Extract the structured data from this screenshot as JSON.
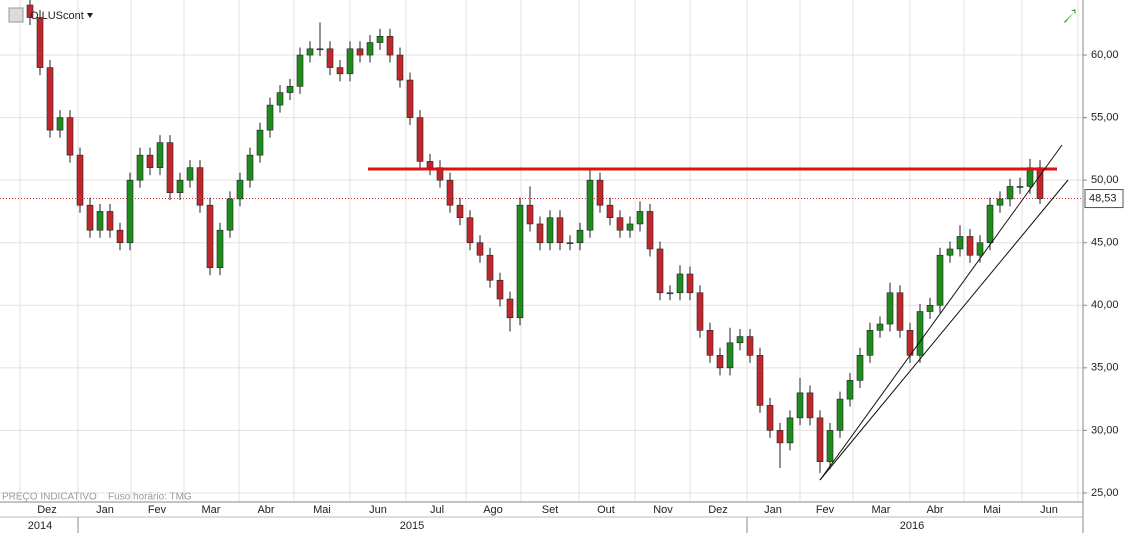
{
  "chart_data": {
    "type": "candlestick",
    "symbol": "OILUScont",
    "notes": [
      "PREÇO INDICATIVO",
      "Fuso horário: TMG"
    ],
    "months": [
      "Dez",
      "Jan",
      "Fev",
      "Mar",
      "Abr",
      "Mai",
      "Jun",
      "Jul",
      "Ago",
      "Set",
      "Out",
      "Nov",
      "Dez",
      "Jan",
      "Fev",
      "Mar",
      "Abr",
      "Mai",
      "Jun"
    ],
    "years": [
      "2014",
      "2015",
      "2016"
    ],
    "ylim": [
      24.3,
      64.4
    ],
    "yticks": [
      {
        "value": 25,
        "label": "25,00"
      },
      {
        "value": 30,
        "label": "30,00"
      },
      {
        "value": 35,
        "label": "35,00"
      },
      {
        "value": 40,
        "label": "40,00"
      },
      {
        "value": 45,
        "label": "45,00"
      },
      {
        "value": 50,
        "label": "50,00"
      },
      {
        "value": 55,
        "label": "55,00"
      },
      {
        "value": 60,
        "label": "60,00"
      }
    ],
    "grid": true,
    "up_color": "#1e8c1e",
    "down_color": "#c0282d",
    "last_price": {
      "value": 48.53,
      "label": "48,53"
    },
    "open": [
      64,
      63,
      59,
      54,
      55,
      52,
      48,
      46,
      47.5,
      46,
      45,
      50,
      52,
      51,
      53,
      49,
      50,
      51,
      48,
      43,
      46,
      48.5,
      50,
      52,
      54,
      56,
      57,
      57.5,
      60,
      60.5,
      60.5,
      59,
      58.5,
      60.5,
      60,
      61,
      61.5,
      60,
      58,
      55,
      51.5,
      51,
      50,
      48,
      47,
      45,
      44,
      42,
      40.5,
      39,
      48,
      46.5,
      45,
      47,
      45,
      45,
      46,
      50,
      48,
      47,
      46,
      46.5,
      47.5,
      44.5,
      41,
      41,
      42.5,
      41,
      38,
      36,
      35,
      37,
      37.5,
      36,
      32,
      30,
      29,
      31,
      33,
      31,
      27.5,
      30,
      32.5,
      34,
      36,
      38,
      38.5,
      41,
      38,
      36,
      39.5,
      40,
      44,
      44.5,
      45.5,
      44,
      45,
      48,
      48.5,
      49.5,
      49.5,
      51
    ],
    "high": [
      64.6,
      63.6,
      59.6,
      55.6,
      55.6,
      52.6,
      48.6,
      48.1,
      48.1,
      46.6,
      50.6,
      52.6,
      52.6,
      53.6,
      53.6,
      50.6,
      51.6,
      51.6,
      48.6,
      46.6,
      49.1,
      50.6,
      52.6,
      54.6,
      56.6,
      57.6,
      58.1,
      60.6,
      61.1,
      62.6,
      61.1,
      59.6,
      61.1,
      61.1,
      61.6,
      62.1,
      62.1,
      60.6,
      58.6,
      55.6,
      52.1,
      51.6,
      50.6,
      48.6,
      47.6,
      45.6,
      44.6,
      42.6,
      41.1,
      48.6,
      49.5,
      47.1,
      47.6,
      47.6,
      45.6,
      46.6,
      50.9,
      50.6,
      48.6,
      47.6,
      47.1,
      48.3,
      48.1,
      45.1,
      41.6,
      43.2,
      43.1,
      41.6,
      38.6,
      36.6,
      38.2,
      38.1,
      38.1,
      36.6,
      32.6,
      30.6,
      31.6,
      34.2,
      33.6,
      31.6,
      30.6,
      33.1,
      34.6,
      36.6,
      38.6,
      39.1,
      41.8,
      41.6,
      38.6,
      40.1,
      40.6,
      44.6,
      45.1,
      46.4,
      46.1,
      45.6,
      48.6,
      49.1,
      50.1,
      50.2,
      51.7,
      51.6
    ],
    "low": [
      62.4,
      58.4,
      53.4,
      53.4,
      51.4,
      47.4,
      45.4,
      45.4,
      45.4,
      44.4,
      44.4,
      49.4,
      50.4,
      50.4,
      48.4,
      48.4,
      49.4,
      47.4,
      42.4,
      42.4,
      45.4,
      47.9,
      49.4,
      51.4,
      53.4,
      55.4,
      56.4,
      56.9,
      59.4,
      59.9,
      58.4,
      57.9,
      57.9,
      59.4,
      59.4,
      60.4,
      59.4,
      57.4,
      54.4,
      50.9,
      50.4,
      49.4,
      47.4,
      46.4,
      44.4,
      43.4,
      41.4,
      39.9,
      37.9,
      38.4,
      45.9,
      44.4,
      44.4,
      44.4,
      44.4,
      44.4,
      45.4,
      47.4,
      46.4,
      45.4,
      45.4,
      45.9,
      43.9,
      40.4,
      40.4,
      40.4,
      40.4,
      37.4,
      35.4,
      34.4,
      34.4,
      36.4,
      35.4,
      31.4,
      29.4,
      27.0,
      28.4,
      30.4,
      30.4,
      26.6,
      26.9,
      29.4,
      31.9,
      33.4,
      35.4,
      37.4,
      37.9,
      37.4,
      35.4,
      35.4,
      38.9,
      39.4,
      43.4,
      43.9,
      43.4,
      43.4,
      44.4,
      47.4,
      47.9,
      48.9,
      48.9,
      48.1
    ],
    "close": [
      63,
      59,
      54,
      55,
      52,
      48,
      46,
      47.5,
      46,
      45,
      50,
      52,
      51,
      53,
      49,
      50,
      51,
      48,
      43,
      46,
      48.5,
      50,
      52,
      54,
      56,
      57,
      57.5,
      60,
      60.5,
      60.5,
      59,
      58.5,
      60.5,
      60,
      61,
      61.5,
      60,
      58,
      55,
      51.5,
      51,
      50,
      48,
      47,
      45,
      44,
      42,
      40.5,
      39,
      48,
      46.5,
      45,
      47,
      45,
      45,
      46,
      50,
      48,
      47,
      46,
      46.5,
      47.5,
      44.5,
      41,
      41,
      42.5,
      41,
      38,
      36,
      35,
      37,
      37.5,
      36,
      32,
      30,
      29,
      31,
      33,
      31,
      27.5,
      30,
      32.5,
      34,
      36,
      38,
      38.5,
      41,
      38,
      36,
      39.5,
      40,
      44,
      44.5,
      45.5,
      44,
      45,
      48,
      48.5,
      49.5,
      49.5,
      51,
      48.53
    ]
  }
}
